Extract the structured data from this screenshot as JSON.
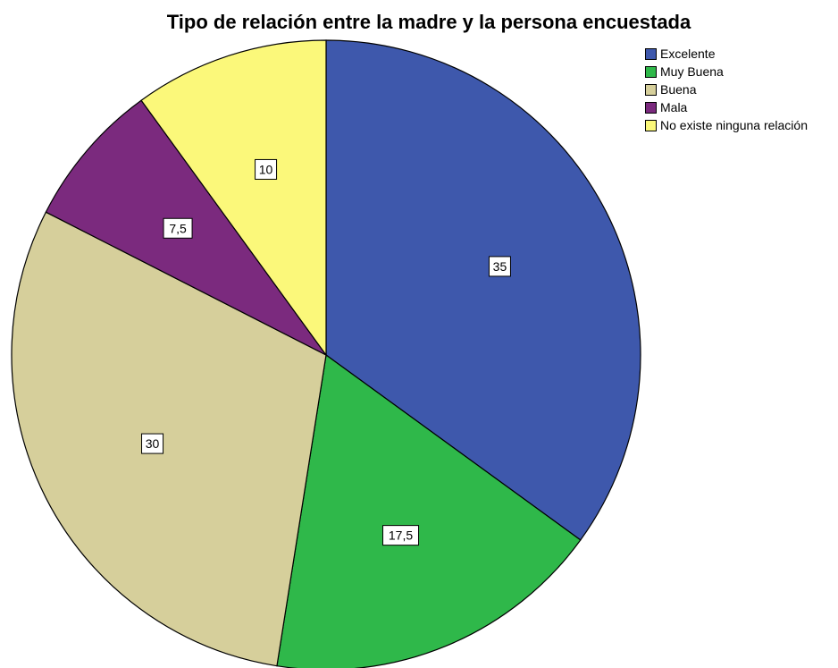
{
  "chart_data": {
    "type": "pie",
    "title": "Tipo de relación entre la madre y la persona encuestada",
    "categories": [
      "Excelente",
      "Muy Buena",
      "Buena",
      "Mala",
      "No existe ninguna relación"
    ],
    "values": [
      35,
      17.5,
      30,
      7.5,
      10
    ],
    "value_labels": [
      "35",
      "17,5",
      "30",
      "7,5",
      "10"
    ],
    "colors": [
      "#3e58ac",
      "#2fb84a",
      "#d6cf9b",
      "#7b2a7e",
      "#fbf87a"
    ],
    "legend_placement": "top-right",
    "start_angle": "12 o'clock",
    "direction": "clockwise"
  }
}
